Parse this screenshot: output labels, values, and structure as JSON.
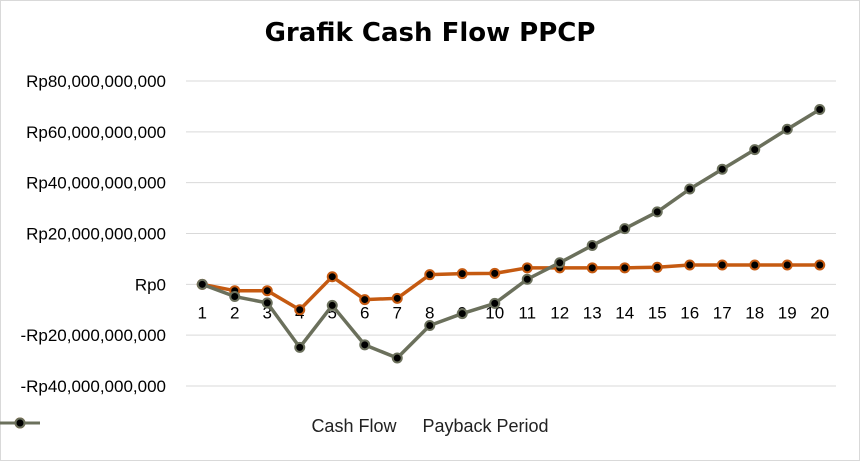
{
  "chart_data": {
    "type": "line",
    "title": "Grafik Cash Flow PPCP",
    "xlabel": "",
    "ylabel": "",
    "x": [
      1,
      2,
      3,
      4,
      5,
      6,
      7,
      8,
      9,
      10,
      11,
      12,
      13,
      14,
      15,
      16,
      17,
      18,
      19,
      20
    ],
    "ylim": [
      -40000000000,
      80000000000
    ],
    "yticks": [
      80000000000,
      60000000000,
      40000000000,
      20000000000,
      0,
      -20000000000,
      -40000000000
    ],
    "ytick_labels": [
      "Rp80,000,000,000",
      "Rp60,000,000,000",
      "Rp40,000,000,000",
      "Rp20,000,000,000",
      "Rp0",
      "-Rp20,000,000,000",
      "-Rp40,000,000,000"
    ],
    "grid": true,
    "legend_position": "bottom",
    "series": [
      {
        "name": "Cash Flow",
        "color": "#c55a11",
        "values": [
          0,
          -2500000000,
          -2500000000,
          -10000000000,
          3000000000,
          -6000000000,
          -5500000000,
          3800000000,
          4200000000,
          4300000000,
          6500000000,
          6500000000,
          6500000000,
          6500000000,
          6700000000,
          7600000000,
          7600000000,
          7600000000,
          7600000000,
          7600000000
        ]
      },
      {
        "name": "Payback Period",
        "color": "#6b705c",
        "values": [
          0,
          -4800000000,
          -7300000000,
          -24800000000,
          -8300000000,
          -23800000000,
          -29000000000,
          -16200000000,
          -11500000000,
          -7500000000,
          2000000000,
          8500000000,
          15300000000,
          21900000000,
          28500000000,
          37500000000,
          45300000000,
          53000000000,
          61000000000,
          68800000000
        ]
      }
    ]
  }
}
